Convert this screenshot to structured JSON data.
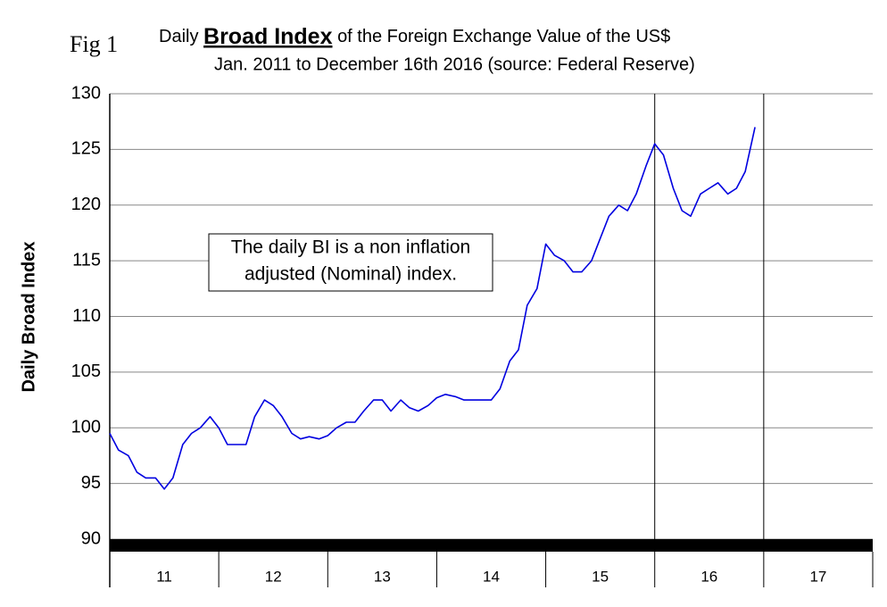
{
  "chart_data": {
    "type": "line",
    "figure_label": "Fig 1",
    "title": "Daily",
    "title_emphasis": "Broad Index",
    "title_rest": "of the Foreign Exchange Value of the US$",
    "subtitle": "Jan. 2011 to December 16th 2016 (source: Federal Reserve)",
    "y_label": "Daily Broad Index",
    "annotation": [
      "The daily BI is a non inflation",
      "adjusted (Nominal) index."
    ],
    "x": [
      11.0,
      11.08,
      11.17,
      11.25,
      11.33,
      11.42,
      11.5,
      11.58,
      11.67,
      11.75,
      11.83,
      11.92,
      12.0,
      12.08,
      12.17,
      12.25,
      12.33,
      12.42,
      12.5,
      12.58,
      12.67,
      12.75,
      12.83,
      12.92,
      13.0,
      13.08,
      13.17,
      13.25,
      13.33,
      13.42,
      13.5,
      13.58,
      13.67,
      13.75,
      13.83,
      13.92,
      14.0,
      14.08,
      14.17,
      14.25,
      14.33,
      14.42,
      14.5,
      14.58,
      14.67,
      14.75,
      14.83,
      14.92,
      15.0,
      15.08,
      15.17,
      15.25,
      15.33,
      15.42,
      15.5,
      15.58,
      15.67,
      15.75,
      15.83,
      15.92,
      16.0,
      16.08,
      16.17,
      16.25,
      16.33,
      16.42,
      16.5,
      16.58,
      16.67,
      16.75,
      16.83,
      16.92
    ],
    "series": [
      {
        "name": "Daily Broad Index",
        "color": "#0000e0",
        "values": [
          99.5,
          98,
          97.5,
          96,
          95.5,
          95.5,
          94.5,
          95.5,
          98.5,
          99.5,
          100,
          101,
          100,
          98.5,
          98.5,
          98.5,
          101,
          102.5,
          102,
          101,
          99.5,
          99,
          99.2,
          99,
          99.3,
          100,
          100.5,
          100.5,
          101.5,
          102.5,
          102.5,
          101.5,
          102.5,
          101.8,
          101.5,
          102,
          102.7,
          103,
          102.8,
          102.5,
          102.5,
          102.5,
          102.5,
          103.5,
          106,
          107,
          111,
          112.5,
          116.5,
          115.5,
          115,
          114,
          114,
          115,
          117,
          119,
          120,
          119.5,
          121,
          123.5,
          125.5,
          124.5,
          121.5,
          119.5,
          119,
          121,
          121.5,
          122,
          121,
          121.5,
          123,
          127
        ]
      }
    ],
    "xlim": [
      11,
      18
    ],
    "xticks": [
      {
        "value": 11.5,
        "label": "11"
      },
      {
        "value": 12.5,
        "label": "12"
      },
      {
        "value": 13.5,
        "label": "13"
      },
      {
        "value": 14.5,
        "label": "14"
      },
      {
        "value": 15.5,
        "label": "15"
      },
      {
        "value": 16.5,
        "label": "16"
      },
      {
        "value": 17.5,
        "label": "17"
      }
    ],
    "year_lines": [
      16,
      17
    ],
    "ylim": [
      90,
      130
    ],
    "yticks": [
      90,
      95,
      100,
      105,
      110,
      115,
      120,
      125,
      130
    ],
    "grid": true
  }
}
